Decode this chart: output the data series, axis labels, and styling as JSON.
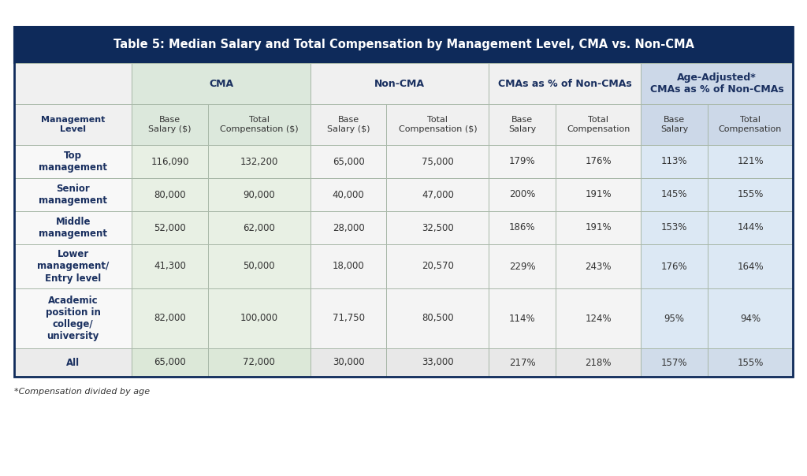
{
  "title": "Table 5: Median Salary and Total Compensation by Management Level, CMA vs. Non-CMA",
  "title_bg": "#0e2a5a",
  "title_color": "#ffffff",
  "footnote": "*Compensation divided by age",
  "group_spans": [
    {
      "label": "",
      "start": 0,
      "end": 1,
      "bg": "#f0f0f0"
    },
    {
      "label": "CMA",
      "start": 1,
      "end": 3,
      "bg": "#dce8dc"
    },
    {
      "label": "Non-CMA",
      "start": 3,
      "end": 5,
      "bg": "#f0f0f0"
    },
    {
      "label": "CMAs as % of Non-CMAs",
      "start": 5,
      "end": 7,
      "bg": "#f0f0f0"
    },
    {
      "label": "Age-Adjusted*\nCMAs as % of Non-CMAs",
      "start": 7,
      "end": 9,
      "bg": "#ccd8e8"
    }
  ],
  "col_headers": [
    "Management\nLevel",
    "Base\nSalary ($)",
    "Total\nCompensation ($)",
    "Base\nSalary ($)",
    "Total\nCompensation ($)",
    "Base\nSalary",
    "Total\nCompensation",
    "Base\nSalary",
    "Total\nCompensation"
  ],
  "col_header_bgs": [
    "#f0f0f0",
    "#dce8dc",
    "#dce8dc",
    "#f0f0f0",
    "#f0f0f0",
    "#f0f0f0",
    "#f0f0f0",
    "#ccd8e8",
    "#ccd8e8"
  ],
  "col_data_bgs": [
    "#f8f8f8",
    "#e8f0e4",
    "#e8f0e4",
    "#f4f4f4",
    "#f4f4f4",
    "#f4f4f4",
    "#f4f4f4",
    "#dce8f4",
    "#dce8f4"
  ],
  "col_last_bgs": [
    "#ebebeb",
    "#dce8d8",
    "#dce8d8",
    "#e8e8e8",
    "#e8e8e8",
    "#e8e8e8",
    "#e8e8e8",
    "#d0dcea",
    "#d0dcea"
  ],
  "col_widths_rel": [
    1.55,
    1.0,
    1.35,
    1.0,
    1.35,
    0.88,
    1.12,
    0.88,
    1.12
  ],
  "rows": [
    {
      "label": "Top\nmanagement",
      "values": [
        "116,090",
        "132,200",
        "65,000",
        "75,000",
        "179%",
        "176%",
        "113%",
        "121%"
      ]
    },
    {
      "label": "Senior\nmanagement",
      "values": [
        "80,000",
        "90,000",
        "40,000",
        "47,000",
        "200%",
        "191%",
        "145%",
        "155%"
      ]
    },
    {
      "label": "Middle\nmanagement",
      "values": [
        "52,000",
        "62,000",
        "28,000",
        "32,500",
        "186%",
        "191%",
        "153%",
        "144%"
      ]
    },
    {
      "label": "Lower\nmanagement/\nEntry level",
      "values": [
        "41,300",
        "50,000",
        "18,000",
        "20,570",
        "229%",
        "243%",
        "176%",
        "164%"
      ]
    },
    {
      "label": "Academic\nposition in\ncollege/\nuniversity",
      "values": [
        "82,000",
        "100,000",
        "71,750",
        "80,500",
        "114%",
        "124%",
        "95%",
        "94%"
      ]
    },
    {
      "label": "All",
      "values": [
        "65,000",
        "72,000",
        "30,000",
        "33,000",
        "217%",
        "218%",
        "157%",
        "155%"
      ]
    }
  ],
  "border_outer": "#0e2a5a",
  "border_inner": "#a8b8a8",
  "label_color": "#1a3060",
  "data_color": "#333333",
  "title_fontsize": 10.5,
  "group_fontsize": 9.0,
  "header_fontsize": 8.0,
  "data_fontsize": 8.5,
  "footnote_fontsize": 8.0
}
